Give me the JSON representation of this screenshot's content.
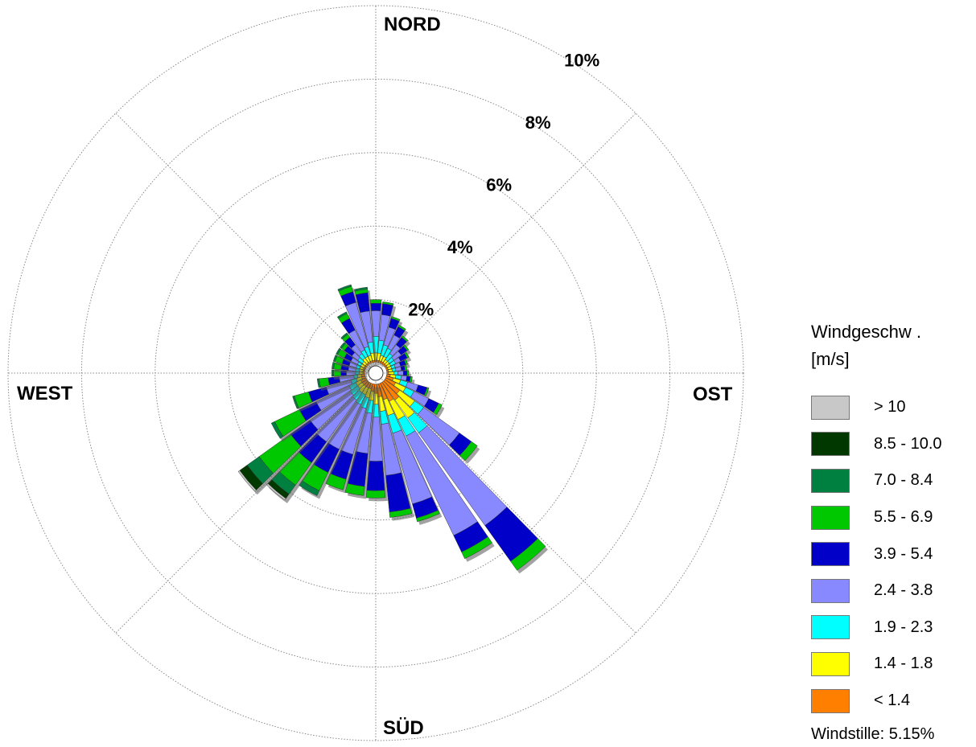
{
  "chart_data": {
    "type": "wind-rose",
    "direction_labels": {
      "north": "NORD",
      "east": "OST",
      "south": "SÜD",
      "west": "WEST"
    },
    "ring_labels": [
      "2%",
      "4%",
      "6%",
      "8%",
      "10%"
    ],
    "ring_values": [
      2,
      4,
      6,
      8,
      10
    ],
    "rlim": [
      0,
      10
    ],
    "sector_count": 36,
    "sector_width_deg": 10,
    "grid": true,
    "legend_placement": "right",
    "legend_title": "Windgeschw .\n[m/s]",
    "speed_bins": [
      {
        "label": "< 1.4",
        "color": "#ff8000"
      },
      {
        "label": "1.4 - 1.8",
        "color": "#ffff00"
      },
      {
        "label": "1.9 - 2.3",
        "color": "#00ffff"
      },
      {
        "label": "2.4 - 3.8",
        "color": "#8888ff"
      },
      {
        "label": "3.9 - 5.4",
        "color": "#0000c8"
      },
      {
        "label": "5.5 - 6.9",
        "color": "#00c800"
      },
      {
        "label": "7.0 - 8.4",
        "color": "#008040"
      },
      {
        "label": "8.5 - 10.0",
        "color": "#003800"
      },
      {
        "label": "> 10",
        "color": "#c8c8c8"
      }
    ],
    "directions_deg": [
      0,
      10,
      20,
      30,
      40,
      50,
      60,
      70,
      80,
      90,
      100,
      110,
      120,
      130,
      140,
      150,
      160,
      170,
      180,
      190,
      200,
      210,
      220,
      230,
      240,
      250,
      260,
      270,
      280,
      290,
      300,
      310,
      320,
      330,
      340,
      350
    ],
    "cumulative_percent": [
      [
        0.35,
        0.55,
        1.0,
        1.7,
        1.9,
        2.0,
        2.0,
        2.0,
        2.0
      ],
      [
        0.35,
        0.55,
        0.9,
        1.6,
        1.9,
        1.95,
        1.95,
        1.95,
        1.95
      ],
      [
        0.35,
        0.5,
        0.8,
        1.3,
        1.55,
        1.6,
        1.6,
        1.6,
        1.6
      ],
      [
        0.35,
        0.5,
        0.75,
        1.15,
        1.4,
        1.45,
        1.45,
        1.45,
        1.45
      ],
      [
        0.35,
        0.45,
        0.65,
        0.95,
        1.2,
        1.25,
        1.25,
        1.25,
        1.25
      ],
      [
        0.35,
        0.45,
        0.6,
        0.85,
        1.05,
        1.1,
        1.1,
        1.1,
        1.1
      ],
      [
        0.35,
        0.45,
        0.6,
        0.75,
        0.95,
        1.0,
        1.0,
        1.0,
        1.0
      ],
      [
        0.35,
        0.45,
        0.55,
        0.7,
        0.85,
        0.9,
        0.9,
        0.9,
        0.9
      ],
      [
        0.35,
        0.45,
        0.55,
        0.7,
        0.8,
        0.85,
        0.85,
        0.85,
        0.85
      ],
      [
        0.35,
        0.5,
        0.6,
        0.75,
        0.85,
        0.9,
        0.9,
        0.9,
        0.9
      ],
      [
        0.4,
        0.55,
        0.7,
        0.85,
        0.95,
        1.0,
        1.0,
        1.0,
        1.0
      ],
      [
        0.5,
        0.7,
        0.9,
        1.2,
        1.45,
        1.5,
        1.5,
        1.5,
        1.5
      ],
      [
        0.6,
        0.9,
        1.15,
        1.6,
        1.9,
        2.0,
        2.0,
        2.0,
        2.0
      ],
      [
        0.8,
        1.3,
        1.6,
        2.8,
        3.2,
        3.4,
        3.4,
        3.4,
        3.4
      ],
      [
        0.9,
        1.5,
        2.0,
        5.1,
        6.3,
        6.6,
        6.6,
        6.6,
        6.6
      ],
      [
        0.85,
        1.4,
        1.9,
        4.9,
        5.4,
        5.6,
        5.6,
        5.6,
        5.6
      ],
      [
        0.75,
        1.2,
        1.7,
        3.7,
        4.1,
        4.2,
        4.2,
        4.2,
        4.2
      ],
      [
        0.65,
        1.05,
        1.4,
        2.8,
        3.8,
        3.95,
        3.95,
        3.95,
        3.95
      ],
      [
        0.55,
        0.85,
        1.2,
        2.4,
        3.2,
        3.4,
        3.4,
        3.4,
        3.4
      ],
      [
        0.5,
        0.75,
        1.1,
        2.2,
        3.1,
        3.35,
        3.35,
        3.35,
        3.35
      ],
      [
        0.45,
        0.7,
        1.0,
        2.3,
        3.0,
        3.3,
        3.3,
        3.3,
        3.3
      ],
      [
        0.45,
        0.65,
        0.95,
        2.3,
        3.0,
        3.55,
        3.7,
        3.7,
        3.7
      ],
      [
        0.45,
        0.65,
        0.9,
        2.3,
        3.0,
        3.75,
        4.05,
        4.2,
        4.25
      ],
      [
        0.45,
        0.6,
        0.85,
        2.2,
        2.85,
        3.9,
        4.3,
        4.55,
        4.6
      ],
      [
        0.45,
        0.6,
        0.8,
        1.8,
        2.3,
        3.05,
        3.15,
        3.15,
        3.15
      ],
      [
        0.4,
        0.55,
        0.7,
        1.4,
        1.9,
        2.3,
        2.35,
        2.35,
        2.35
      ],
      [
        0.4,
        0.5,
        0.6,
        1.0,
        1.3,
        1.55,
        1.6,
        1.6,
        1.6
      ],
      [
        0.35,
        0.45,
        0.55,
        0.8,
        0.95,
        1.15,
        1.2,
        1.2,
        1.2
      ],
      [
        0.35,
        0.45,
        0.55,
        0.75,
        0.95,
        1.15,
        1.2,
        1.2,
        1.2
      ],
      [
        0.35,
        0.45,
        0.55,
        0.75,
        0.95,
        1.15,
        1.2,
        1.2,
        1.2
      ],
      [
        0.35,
        0.45,
        0.55,
        0.75,
        0.95,
        1.15,
        1.2,
        1.2,
        1.2
      ],
      [
        0.35,
        0.45,
        0.6,
        0.8,
        1.05,
        1.15,
        1.2,
        1.2,
        1.2
      ],
      [
        0.35,
        0.5,
        0.65,
        0.95,
        1.2,
        1.3,
        1.35,
        1.35,
        1.35
      ],
      [
        0.35,
        0.5,
        0.7,
        1.3,
        1.65,
        1.8,
        1.85,
        1.85,
        1.85
      ],
      [
        0.35,
        0.5,
        0.75,
        2.0,
        2.3,
        2.45,
        2.5,
        2.5,
        2.5
      ],
      [
        0.35,
        0.55,
        0.85,
        1.7,
        2.2,
        2.3,
        2.35,
        2.35,
        2.35
      ]
    ]
  },
  "legend": {
    "title": "Windgeschw .\n[m/s]",
    "items": [
      "> 10",
      "8.5 - 10.0",
      "7.0 - 8.4",
      "5.5 - 6.9",
      "3.9 - 5.4",
      "2.4 - 3.8",
      "1.9 - 2.3",
      "1.4 - 1.8",
      "< 1.4"
    ],
    "colors": [
      "#c8c8c8",
      "#003800",
      "#008040",
      "#00c800",
      "#0000c8",
      "#8888ff",
      "#00ffff",
      "#ffff00",
      "#ff8000"
    ],
    "calm_text": "Windstille: 5.15%"
  }
}
